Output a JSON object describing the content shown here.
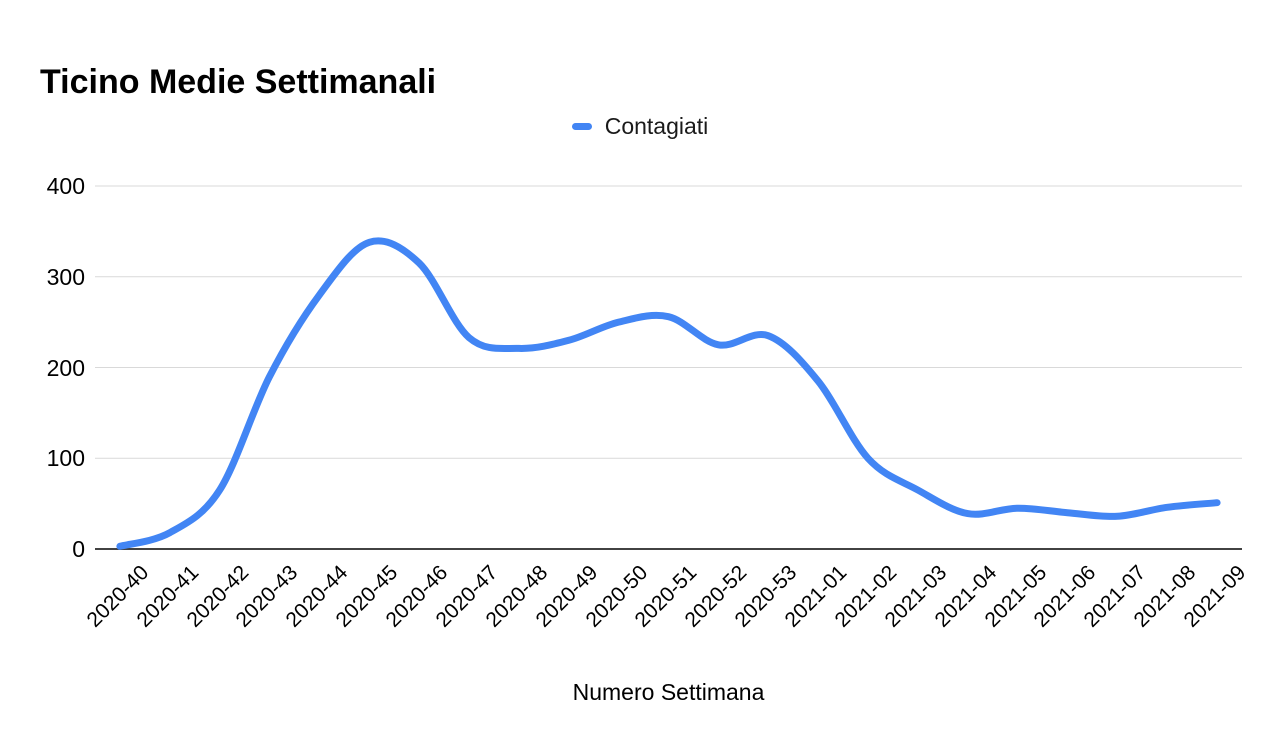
{
  "title": "Ticino Medie Settimanali",
  "legend": {
    "items": [
      {
        "label": "Contagiati",
        "color": "#4285f4"
      }
    ]
  },
  "x_axis_title": "Numero Settimana",
  "colors": {
    "line": "#4285f4",
    "gridline": "#d9d9d9",
    "axis_line": "#424242",
    "text": "#000000"
  },
  "chart_data": {
    "type": "line",
    "title": "Ticino Medie Settimanali",
    "xlabel": "Numero Settimana",
    "ylabel": "",
    "ylim": [
      0,
      400
    ],
    "y_ticks": [
      0,
      100,
      200,
      300,
      400
    ],
    "grid": true,
    "smooth": true,
    "legend_position": "top-center",
    "categories": [
      "2020-40",
      "2020-41",
      "2020-42",
      "2020-43",
      "2020-44",
      "2020-45",
      "2020-46",
      "2020-47",
      "2020-48",
      "2020-49",
      "2020-50",
      "2020-51",
      "2020-52",
      "2020-53",
      "2021-01",
      "2021-02",
      "2021-03",
      "2021-04",
      "2021-05",
      "2021-06",
      "2021-07",
      "2021-08",
      "2021-09"
    ],
    "series": [
      {
        "name": "Contagiati",
        "color": "#4285f4",
        "values": [
          3,
          18,
          65,
          190,
          280,
          338,
          315,
          233,
          221,
          230,
          250,
          256,
          225,
          235,
          185,
          100,
          65,
          39,
          45,
          40,
          36,
          46,
          51
        ]
      }
    ]
  }
}
